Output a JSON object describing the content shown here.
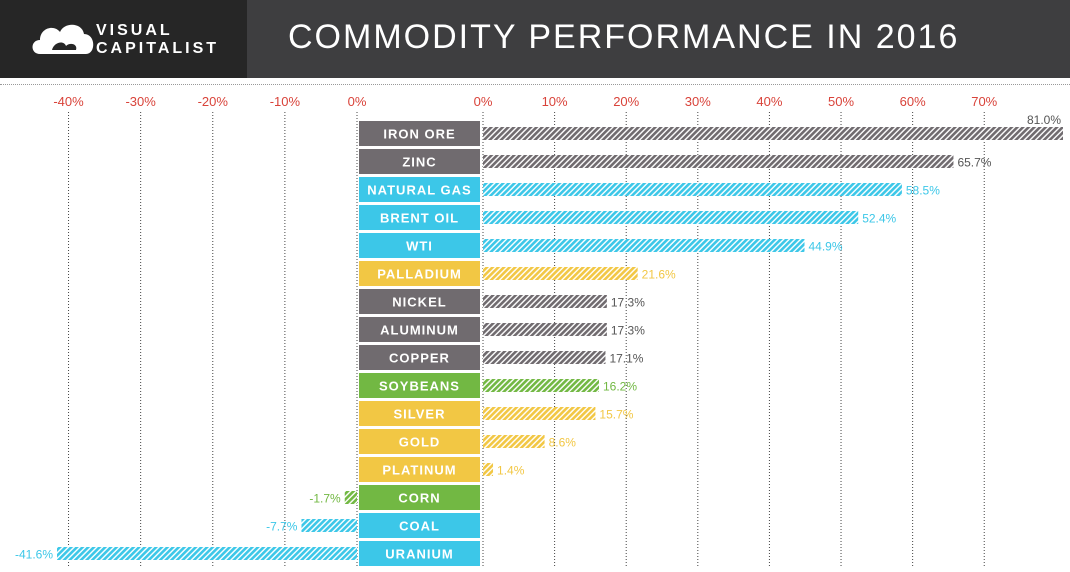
{
  "header": {
    "logo_line1": "VISUAL",
    "logo_line2": "CAPITALIST",
    "title": "COMMODITY PERFORMANCE IN 2016"
  },
  "colors": {
    "metal": "#706b6f",
    "energy": "#3cc7e8",
    "precious": "#f2c744",
    "agri": "#72b843",
    "tick": "#d9433a"
  },
  "chart_data": {
    "type": "bar",
    "orientation": "horizontal",
    "title": "COMMODITY PERFORMANCE IN 2016",
    "xlim_negative": [
      -40,
      0
    ],
    "xlim_positive": [
      0,
      70
    ],
    "ticks_negative": [
      "-40%",
      "-30%",
      "-20%",
      "-10%",
      "0%"
    ],
    "ticks_positive": [
      "0%",
      "10%",
      "20%",
      "30%",
      "40%",
      "50%",
      "60%",
      "70%"
    ],
    "categories": [
      "IRON ORE",
      "ZINC",
      "NATURAL GAS",
      "BRENT OIL",
      "WTI",
      "PALLADIUM",
      "NICKEL",
      "ALUMINUM",
      "COPPER",
      "SOYBEANS",
      "SILVER",
      "GOLD",
      "PLATINUM",
      "CORN",
      "COAL",
      "URANIUM"
    ],
    "values": [
      81.0,
      65.7,
      58.5,
      52.4,
      44.9,
      21.6,
      17.3,
      17.3,
      17.1,
      16.2,
      15.7,
      8.6,
      1.4,
      -1.7,
      -7.7,
      -41.6
    ],
    "value_labels": [
      "81.0%",
      "65.7%",
      "58.5%",
      "52.4%",
      "44.9%",
      "21.6%",
      "17.3%",
      "17.3%",
      "17.1%",
      "16.2%",
      "15.7%",
      "8.6%",
      "1.4%",
      "-1.7%",
      "-7.7%",
      "-41.6%"
    ],
    "groups": [
      "metal",
      "metal",
      "energy",
      "energy",
      "energy",
      "precious",
      "metal",
      "metal",
      "metal",
      "agri",
      "precious",
      "precious",
      "precious",
      "agri",
      "energy",
      "energy"
    ]
  }
}
